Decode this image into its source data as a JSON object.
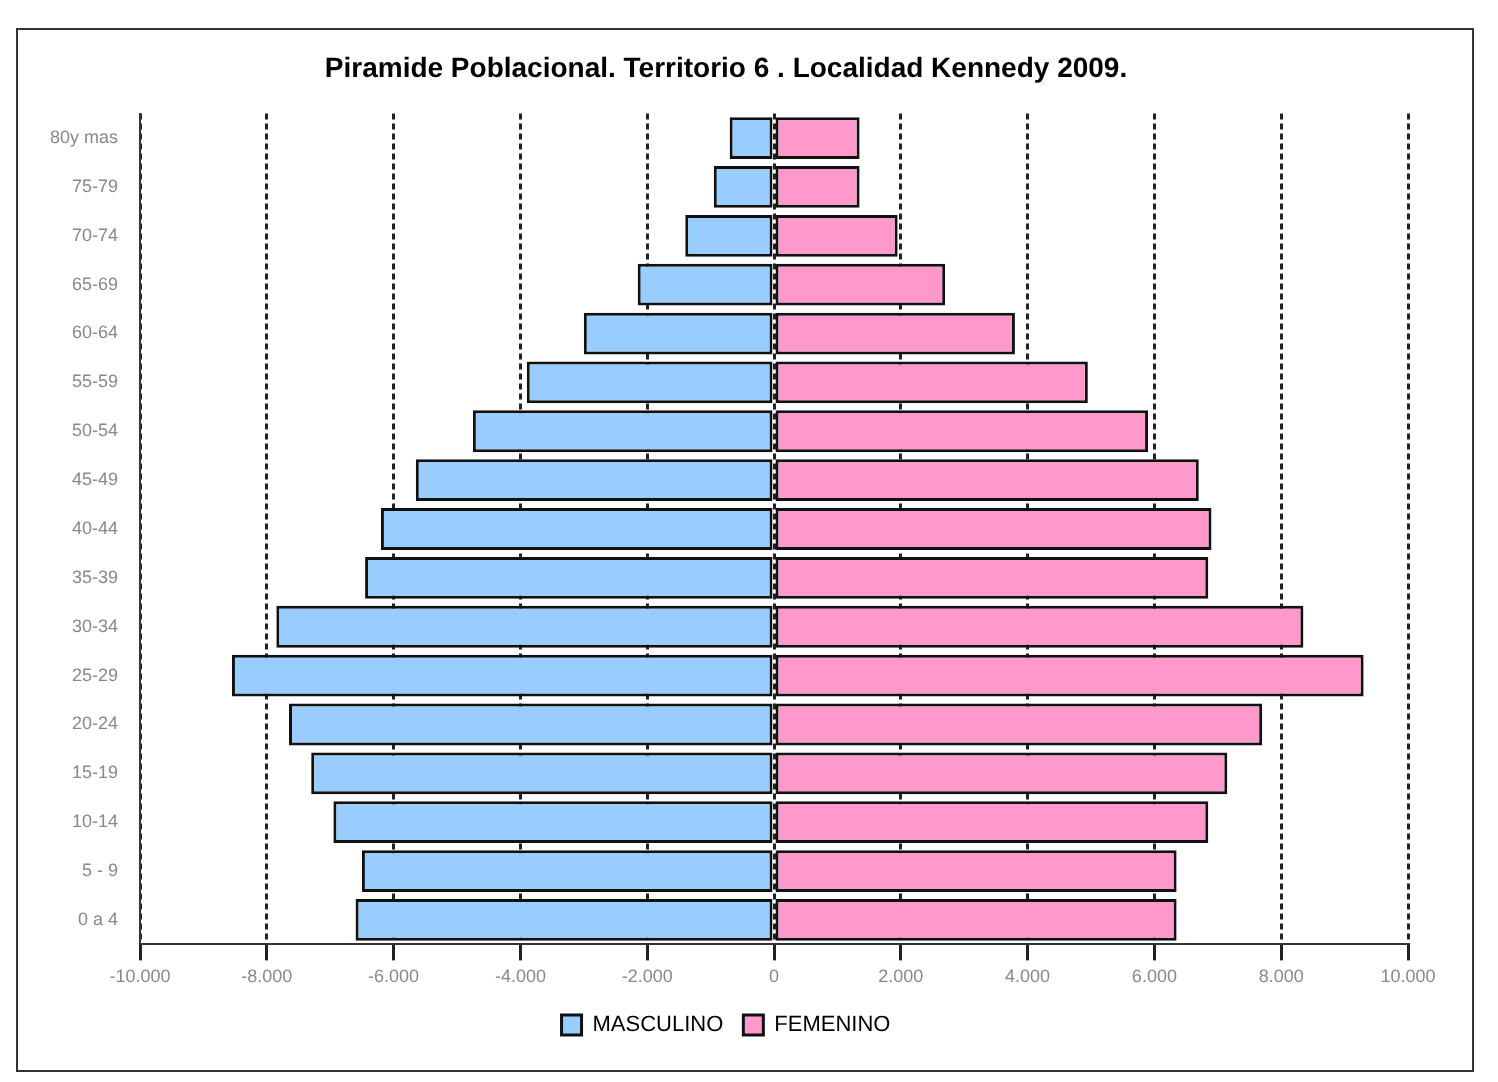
{
  "chart_data": {
    "type": "bar",
    "title": "Piramide Poblacional. Territorio 6 . Localidad Kennedy 2009.",
    "orientation": "horizontal",
    "stacked": true,
    "categories": [
      "80y mas",
      "75-79",
      "70-74",
      "65-69",
      "60-64",
      "55-59",
      "50-54",
      "45-49",
      "40-44",
      "35-39",
      "30-34",
      "25-29",
      "20-24",
      "15-19",
      "10-14",
      "5 - 9",
      "0 a 4"
    ],
    "series": [
      {
        "name": "MASCULINO",
        "color": "#99ccff",
        "values": [
          -700,
          -950,
          -1400,
          -2150,
          -3000,
          -3900,
          -4750,
          -5650,
          -6200,
          -6450,
          -7850,
          -8550,
          -7650,
          -7300,
          -6950,
          -6500,
          -6600
        ]
      },
      {
        "name": "FEMENINO",
        "color": "#ff99cc",
        "values": [
          1350,
          1350,
          1950,
          2700,
          3800,
          4950,
          5900,
          6700,
          6900,
          6850,
          8350,
          9300,
          7700,
          7150,
          6850,
          6350,
          6350
        ]
      }
    ],
    "xlim": [
      -10000,
      10000
    ],
    "xticks": [
      {
        "value": -10000,
        "label": "-10.000"
      },
      {
        "value": -8000,
        "label": "-8.000"
      },
      {
        "value": -6000,
        "label": "-6.000"
      },
      {
        "value": -4000,
        "label": "-4.000"
      },
      {
        "value": -2000,
        "label": "-2.000"
      },
      0,
      {
        "value": 2000,
        "label": "2.000"
      },
      {
        "value": 4000,
        "label": "4.000"
      },
      {
        "value": 6000,
        "label": "6.000"
      },
      {
        "value": 8000,
        "label": "8.000"
      },
      {
        "value": 10000,
        "label": "10.000"
      }
    ],
    "grid": "x",
    "legend": "bottom"
  }
}
